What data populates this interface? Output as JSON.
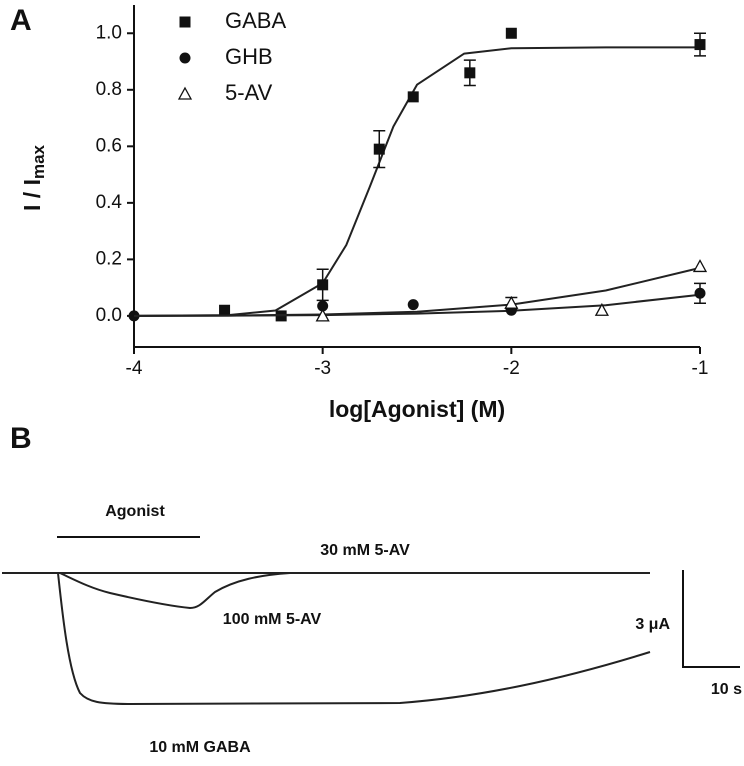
{
  "chart_data": {
    "type": "scatter",
    "panel_label": "A",
    "x_label": "log[Agonist] (M)",
    "y_label": "I / I",
    "y_label_subscript": "max",
    "xlim": [
      -4,
      -1
    ],
    "xticks": [
      -4,
      -3,
      -2,
      -1
    ],
    "ylim": [
      -0.11,
      1.1
    ],
    "yticks": [
      {
        "value": 0,
        "label": "0.0"
      },
      0.2,
      0.4,
      0.6,
      0.8,
      {
        "value": 1,
        "label": "1.0"
      }
    ],
    "legend": "top-left",
    "series": [
      {
        "name": "GABA",
        "marker": "square",
        "color": "#111111",
        "x": [
          -3.52,
          -3.22,
          -3.0,
          -2.7,
          -2.52,
          -2.22,
          -2.0,
          -1.0
        ],
        "values": [
          0.02,
          0.0,
          0.11,
          0.59,
          0.775,
          0.86,
          1.0,
          0.96
        ],
        "errors": [
          null,
          null,
          0.055,
          0.065,
          null,
          0.045,
          null,
          0.04
        ],
        "fit": {
          "x": [
            -4,
            -3.5,
            -3.25,
            -3,
            -2.875,
            -2.75,
            -2.625,
            -2.5,
            -2.25,
            -2,
            -1.5,
            -1
          ],
          "values": [
            0,
            0.003,
            0.019,
            0.116,
            0.251,
            0.457,
            0.67,
            0.818,
            0.928,
            0.947,
            0.95,
            0.95
          ]
        }
      },
      {
        "name": "GHB",
        "marker": "circle",
        "color": "#111111",
        "x": [
          -4,
          -3.0,
          -2.52,
          -2.0,
          -1.0
        ],
        "values": [
          0.0,
          0.035,
          0.04,
          0.02,
          0.08
        ],
        "errors": [
          null,
          null,
          null,
          null,
          0.035
        ],
        "fit": {
          "x": [
            -4,
            -3.5,
            -3,
            -2.5,
            -2,
            -1.5,
            -1
          ],
          "values": [
            0,
            0.001,
            0.003,
            0.008,
            0.018,
            0.038,
            0.075
          ]
        }
      },
      {
        "name": "5-AV",
        "marker": "triangle-open",
        "color": "#111111",
        "x": [
          -3.0,
          -2.0,
          -1.52,
          -1.0
        ],
        "values": [
          0.0,
          0.045,
          0.02,
          0.175
        ],
        "errors": [
          null,
          0.02,
          null,
          null
        ],
        "fit": {
          "x": [
            -4,
            -3.5,
            -3,
            -2.5,
            -2,
            -1.5,
            -1
          ],
          "values": [
            0,
            0.001,
            0.005,
            0.015,
            0.04,
            0.09,
            0.17
          ]
        }
      }
    ]
  },
  "panel_b": {
    "panel_label": "B",
    "agonist_label": "Agonist",
    "trace_labels": [
      "30 mM 5-AV",
      "100 mM 5-AV",
      "10 mM GABA"
    ],
    "scale_current": "3 μA",
    "scale_time": "10 s"
  }
}
